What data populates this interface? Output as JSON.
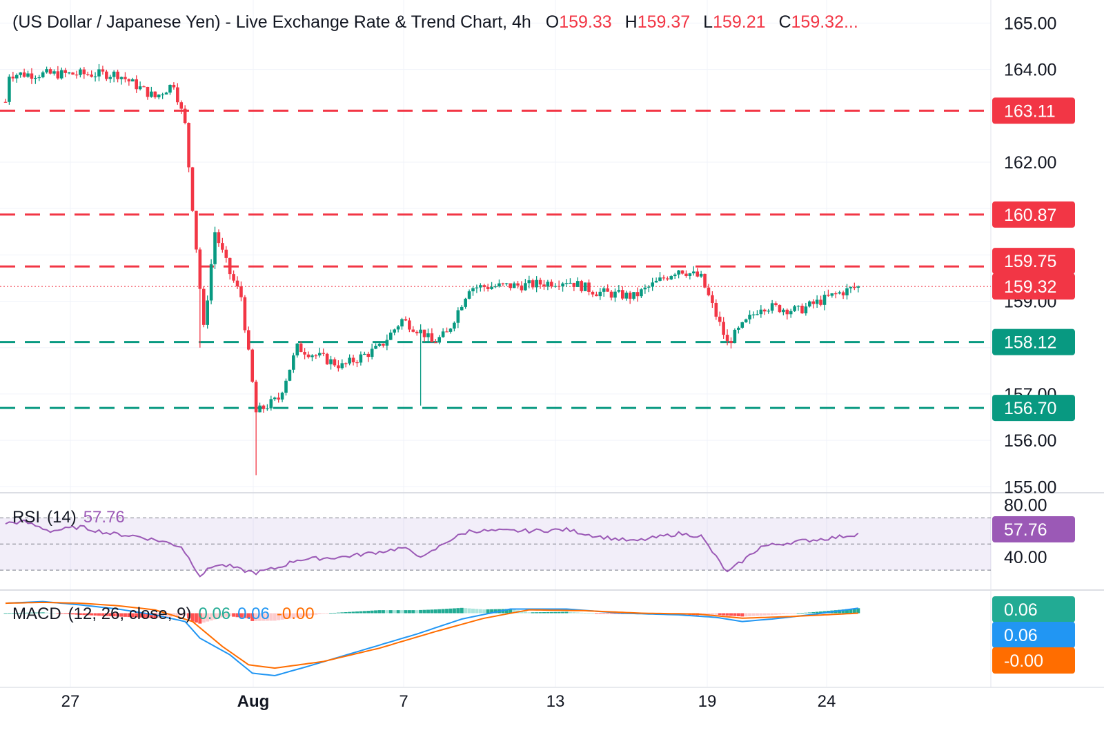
{
  "header": {
    "title": "(US Dollar / Japanese Yen) - Live Exchange Rate & Trend Chart, 4h",
    "o_label": "O",
    "o_value": "159.33",
    "h_label": "H",
    "h_value": "159.37",
    "l_label": "L",
    "l_value": "159.21",
    "c_label": "C",
    "c_value": "159.32..."
  },
  "colors": {
    "up": "#089981",
    "down": "#f23645",
    "rsi": "#9b59b6",
    "macd": "#2196f3",
    "signal": "#ff6d00",
    "hist_up_strong": "#22ab94",
    "hist_up_weak": "#ace5dc",
    "hist_down_strong": "#ff5252",
    "hist_down_weak": "#fccbcd"
  },
  "rsi_panel": {
    "name": "RSI",
    "params": "(14)",
    "value": "57.76"
  },
  "macd_panel": {
    "name": "MACD",
    "params": "(12, 26, close, 9)",
    "histogram": "0.06",
    "macd": "0.06",
    "signal": "-0.00"
  },
  "chart_data": {
    "type": "candlestick",
    "symbol": "USD/JPY",
    "interval": "4h",
    "price_axis": {
      "ticks": [
        "165.00",
        "164.00",
        "162.00",
        "159.00",
        "157.00",
        "156.00",
        "155.00"
      ],
      "range": [
        154.9,
        165.2
      ]
    },
    "time_axis": {
      "labels": [
        {
          "text": "27",
          "bold": false
        },
        {
          "text": "Aug",
          "bold": true
        },
        {
          "text": "7",
          "bold": false
        },
        {
          "text": "13",
          "bold": false
        },
        {
          "text": "19",
          "bold": false
        },
        {
          "text": "24",
          "bold": false
        }
      ]
    },
    "horizontal_levels": [
      {
        "value": 163.11,
        "label": "163.11",
        "kind": "resistance"
      },
      {
        "value": 160.87,
        "label": "160.87",
        "kind": "resistance"
      },
      {
        "value": 159.75,
        "label": "159.75",
        "kind": "resistance"
      },
      {
        "value": 158.12,
        "label": "158.12",
        "kind": "support"
      },
      {
        "value": 156.7,
        "label": "156.70",
        "kind": "support"
      }
    ],
    "last_price": {
      "value": 159.32,
      "label": "159.32"
    },
    "key_points": [
      {
        "t": 0,
        "p": 163.3
      },
      {
        "t": 1,
        "p": 163.9
      },
      {
        "t": 15,
        "p": 163.9
      },
      {
        "t": 30,
        "p": 163.9
      },
      {
        "t": 40,
        "p": 163.4
      },
      {
        "t": 45,
        "p": 163.7
      },
      {
        "t": 48,
        "p": 162.8
      },
      {
        "t": 53,
        "p": 158.4
      },
      {
        "t": 56,
        "p": 160.5
      },
      {
        "t": 60,
        "p": 159.6
      },
      {
        "t": 63,
        "p": 159.1
      },
      {
        "t": 67,
        "p": 156.6
      },
      {
        "t": 73,
        "p": 156.9
      },
      {
        "t": 78,
        "p": 158.0
      },
      {
        "t": 90,
        "p": 157.6
      },
      {
        "t": 100,
        "p": 158.0
      },
      {
        "t": 106,
        "p": 158.6
      },
      {
        "t": 112,
        "p": 158.3
      },
      {
        "t": 114,
        "p": 158.1
      },
      {
        "t": 118,
        "p": 158.3
      },
      {
        "t": 124,
        "p": 159.3
      },
      {
        "t": 140,
        "p": 159.35
      },
      {
        "t": 150,
        "p": 159.45
      },
      {
        "t": 158,
        "p": 159.2
      },
      {
        "t": 168,
        "p": 159.1
      },
      {
        "t": 180,
        "p": 159.7
      },
      {
        "t": 186,
        "p": 159.5
      },
      {
        "t": 193,
        "p": 158.1
      },
      {
        "t": 202,
        "p": 158.9
      },
      {
        "t": 212,
        "p": 158.8
      },
      {
        "t": 222,
        "p": 159.15
      },
      {
        "t": 228,
        "p": 159.32
      }
    ],
    "wick_extremes": [
      {
        "t": 52,
        "low": 158.0
      },
      {
        "t": 67,
        "low": 155.25
      },
      {
        "t": 111,
        "low": 156.75
      },
      {
        "t": 193,
        "low": 158.05
      }
    ],
    "rsi": {
      "range": [
        20,
        85
      ],
      "ticks": [
        "80.00",
        "40.00"
      ],
      "bands": [
        70,
        50,
        30
      ],
      "points": [
        [
          0,
          66
        ],
        [
          5,
          67
        ],
        [
          12,
          60
        ],
        [
          20,
          63
        ],
        [
          28,
          58
        ],
        [
          35,
          56
        ],
        [
          42,
          52
        ],
        [
          47,
          48
        ],
        [
          52,
          26
        ],
        [
          56,
          34
        ],
        [
          60,
          33
        ],
        [
          63,
          30
        ],
        [
          67,
          28
        ],
        [
          73,
          32
        ],
        [
          78,
          38
        ],
        [
          90,
          40
        ],
        [
          100,
          44
        ],
        [
          106,
          47
        ],
        [
          112,
          40
        ],
        [
          118,
          52
        ],
        [
          124,
          60
        ],
        [
          140,
          60
        ],
        [
          150,
          61
        ],
        [
          158,
          56
        ],
        [
          168,
          52
        ],
        [
          180,
          58
        ],
        [
          186,
          56
        ],
        [
          193,
          28
        ],
        [
          202,
          48
        ],
        [
          212,
          52
        ],
        [
          222,
          55
        ],
        [
          228,
          57.76
        ]
      ]
    },
    "macd": {
      "range": [
        -0.8,
        0.22
      ],
      "points_macd": [
        [
          0,
          0.12
        ],
        [
          10,
          0.14
        ],
        [
          20,
          0.1
        ],
        [
          30,
          0.05
        ],
        [
          40,
          -0.02
        ],
        [
          48,
          -0.1
        ],
        [
          52,
          -0.3
        ],
        [
          60,
          -0.5
        ],
        [
          66,
          -0.72
        ],
        [
          72,
          -0.75
        ],
        [
          80,
          -0.65
        ],
        [
          95,
          -0.45
        ],
        [
          110,
          -0.25
        ],
        [
          122,
          -0.07
        ],
        [
          135,
          0.05
        ],
        [
          150,
          0.05
        ],
        [
          165,
          0.0
        ],
        [
          180,
          -0.02
        ],
        [
          190,
          -0.05
        ],
        [
          197,
          -0.1
        ],
        [
          205,
          -0.07
        ],
        [
          215,
          -0.02
        ],
        [
          228,
          0.06
        ]
      ],
      "points_signal": [
        [
          0,
          0.12
        ],
        [
          10,
          0.13
        ],
        [
          20,
          0.12
        ],
        [
          30,
          0.09
        ],
        [
          40,
          0.04
        ],
        [
          50,
          -0.1
        ],
        [
          58,
          -0.4
        ],
        [
          65,
          -0.62
        ],
        [
          72,
          -0.66
        ],
        [
          85,
          -0.58
        ],
        [
          100,
          -0.42
        ],
        [
          115,
          -0.22
        ],
        [
          128,
          -0.06
        ],
        [
          140,
          0.04
        ],
        [
          155,
          0.03
        ],
        [
          170,
          0.0
        ],
        [
          185,
          -0.01
        ],
        [
          197,
          -0.06
        ],
        [
          210,
          -0.04
        ],
        [
          228,
          -0.0
        ]
      ]
    }
  }
}
